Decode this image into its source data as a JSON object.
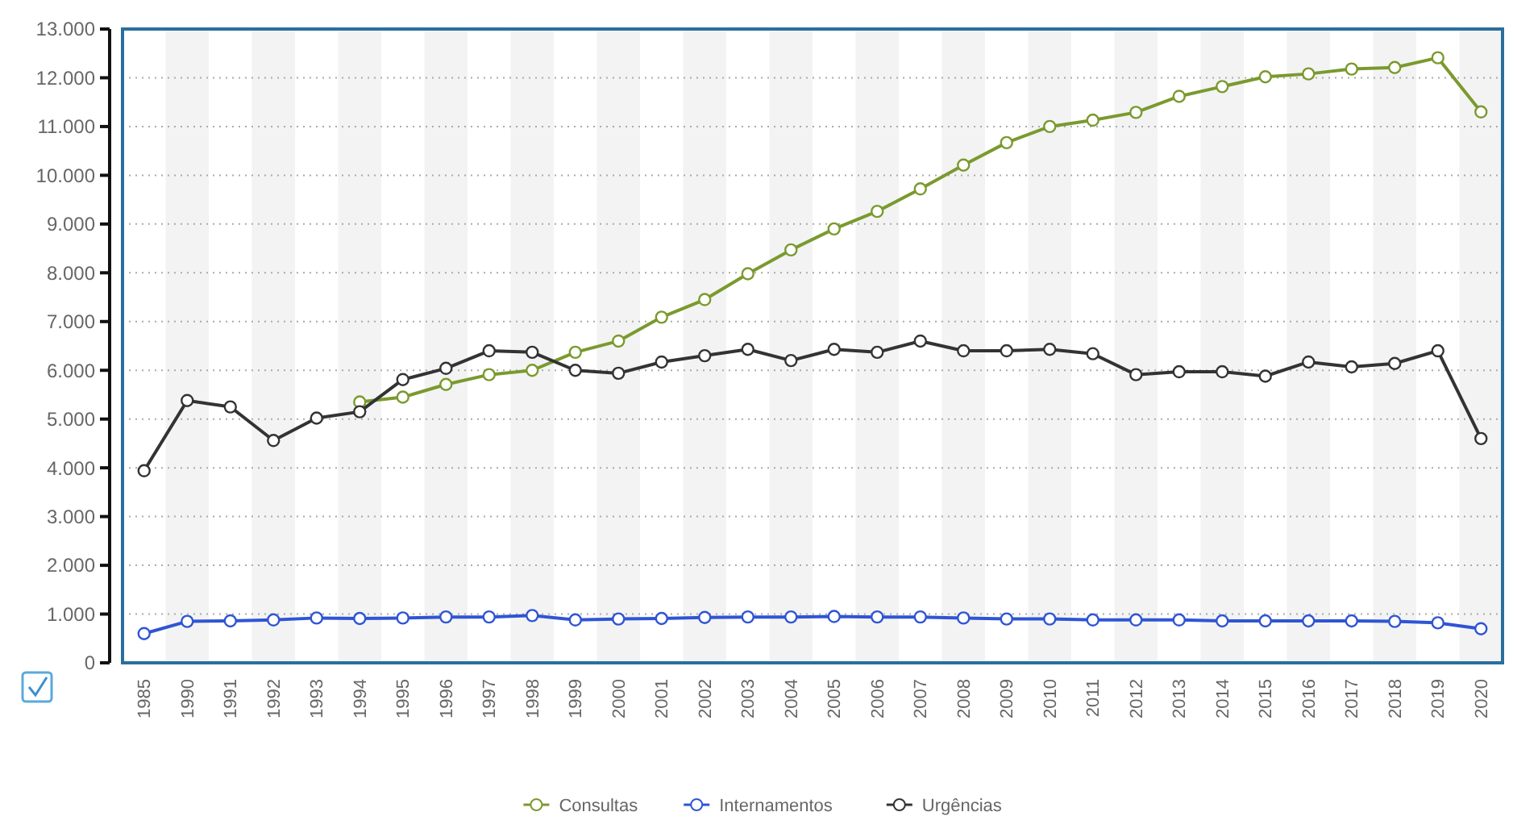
{
  "chart_data": {
    "type": "line",
    "categories": [
      "1985",
      "1990",
      "1991",
      "1992",
      "1993",
      "1994",
      "1995",
      "1996",
      "1997",
      "1998",
      "1999",
      "2000",
      "2001",
      "2002",
      "2003",
      "2004",
      "2005",
      "2006",
      "2007",
      "2008",
      "2009",
      "2010",
      "2011",
      "2012",
      "2013",
      "2014",
      "2015",
      "2016",
      "2017",
      "2018",
      "2019",
      "2020"
    ],
    "series": [
      {
        "name": "Consultas",
        "color": "#7a9a2e",
        "values": [
          null,
          null,
          null,
          null,
          null,
          5350,
          5450,
          5710,
          5910,
          6000,
          6370,
          6600,
          7090,
          7450,
          7980,
          8470,
          8900,
          9260,
          9720,
          10210,
          10670,
          11000,
          11130,
          11290,
          11620,
          11820,
          12020,
          12080,
          12180,
          12210,
          12410,
          11300
        ]
      },
      {
        "name": "Internamentos",
        "color": "#2f55d4",
        "values": [
          600,
          850,
          860,
          880,
          920,
          910,
          920,
          940,
          940,
          970,
          880,
          900,
          910,
          930,
          940,
          940,
          950,
          940,
          940,
          920,
          900,
          900,
          880,
          880,
          880,
          860,
          860,
          860,
          860,
          850,
          820,
          700
        ]
      },
      {
        "name": "Urgências",
        "color": "#333333",
        "values": [
          3940,
          5380,
          5250,
          4560,
          5020,
          5150,
          5810,
          6040,
          6400,
          6370,
          6000,
          5940,
          6170,
          6300,
          6430,
          6200,
          6430,
          6370,
          6600,
          6400,
          6400,
          6430,
          6340,
          5910,
          5970,
          5970,
          5880,
          6170,
          6070,
          6140,
          6400,
          4600
        ]
      }
    ],
    "ylim": [
      0,
      13000
    ],
    "yticks": [
      {
        "value": 0,
        "label": "0"
      },
      {
        "value": 1000,
        "label": "1.000"
      },
      {
        "value": 2000,
        "label": "2.000"
      },
      {
        "value": 3000,
        "label": "3.000"
      },
      {
        "value": 4000,
        "label": "4.000"
      },
      {
        "value": 5000,
        "label": "5.000"
      },
      {
        "value": 6000,
        "label": "6.000"
      },
      {
        "value": 7000,
        "label": "7.000"
      },
      {
        "value": 8000,
        "label": "8.000"
      },
      {
        "value": 9000,
        "label": "9.000"
      },
      {
        "value": 10000,
        "label": "10.000"
      },
      {
        "value": 11000,
        "label": "11.000"
      },
      {
        "value": 12000,
        "label": "12.000"
      },
      {
        "value": 13000,
        "label": "13.000"
      }
    ],
    "grid": "y",
    "legend": "bottom",
    "marker": "circle",
    "line_style": "solid"
  }
}
